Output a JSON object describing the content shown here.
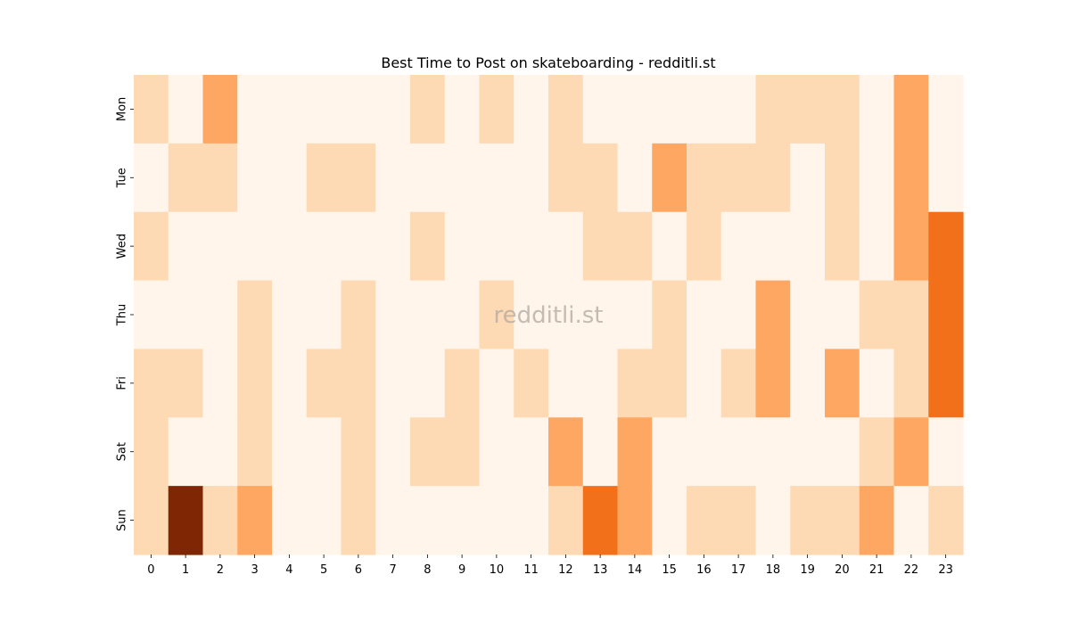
{
  "chart_data": {
    "type": "heatmap",
    "title": "Best Time to Post on skateboarding - redditli.st",
    "watermark": "redditli.st",
    "x": [
      "0",
      "1",
      "2",
      "3",
      "4",
      "5",
      "6",
      "7",
      "8",
      "9",
      "10",
      "11",
      "12",
      "13",
      "14",
      "15",
      "16",
      "17",
      "18",
      "19",
      "20",
      "21",
      "22",
      "23"
    ],
    "y": [
      "Mon",
      "Tue",
      "Wed",
      "Thu",
      "Fri",
      "Sat",
      "Sun"
    ],
    "values": [
      [
        1,
        0,
        2,
        0,
        0,
        0,
        0,
        0,
        1,
        0,
        1,
        0,
        1,
        0,
        0,
        0,
        0,
        0,
        1,
        1,
        1,
        0,
        2,
        0
      ],
      [
        0,
        1,
        1,
        0,
        0,
        1,
        1,
        0,
        0,
        0,
        0,
        0,
        1,
        1,
        0,
        2,
        1,
        1,
        1,
        0,
        1,
        0,
        2,
        0
      ],
      [
        1,
        0,
        0,
        0,
        0,
        0,
        0,
        0,
        1,
        0,
        0,
        0,
        0,
        1,
        1,
        0,
        1,
        0,
        0,
        0,
        1,
        0,
        2,
        3
      ],
      [
        0,
        0,
        0,
        1,
        0,
        0,
        1,
        0,
        0,
        0,
        1,
        0,
        0,
        0,
        0,
        1,
        0,
        0,
        2,
        0,
        0,
        1,
        1,
        3
      ],
      [
        1,
        1,
        0,
        1,
        0,
        1,
        1,
        0,
        0,
        1,
        0,
        1,
        0,
        0,
        1,
        1,
        0,
        1,
        2,
        0,
        2,
        0,
        1,
        3
      ],
      [
        1,
        0,
        0,
        1,
        0,
        0,
        1,
        0,
        1,
        1,
        0,
        0,
        2,
        0,
        2,
        0,
        0,
        0,
        0,
        0,
        0,
        1,
        2,
        0
      ],
      [
        1,
        4,
        1,
        2,
        0,
        0,
        1,
        0,
        0,
        0,
        0,
        0,
        1,
        3,
        2,
        0,
        1,
        1,
        0,
        1,
        1,
        2,
        0,
        1
      ]
    ],
    "colorscale": [
      "#fff5eb",
      "#fdd9b4",
      "#fda762",
      "#f3701b",
      "#7f2704"
    ],
    "grid": false,
    "colorbar": false
  }
}
